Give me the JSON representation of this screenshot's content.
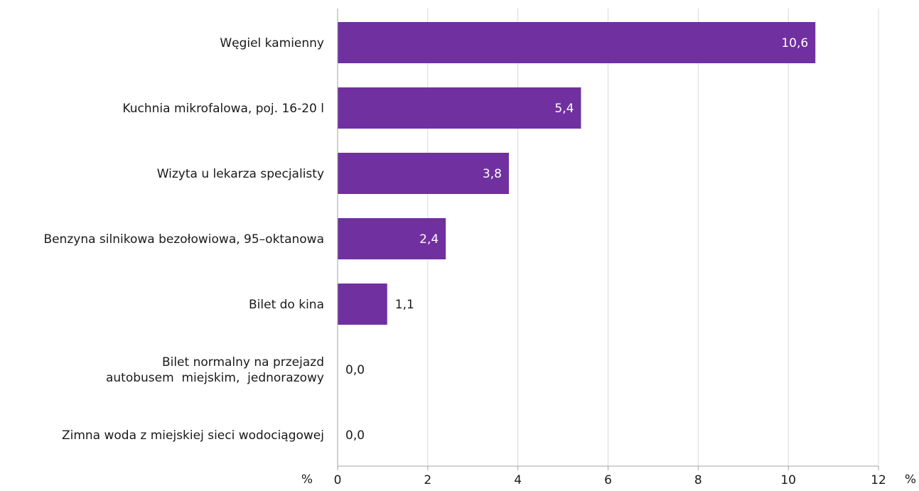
{
  "chart_data": {
    "type": "bar",
    "orientation": "horizontal",
    "categories": [
      [
        "Węgiel kamienny"
      ],
      [
        "Kuchnia mikrofalowa, poj. 16-20 l"
      ],
      [
        "Wizyta u lekarza specjalisty"
      ],
      [
        "Benzyna silnikowa bezołowiowa, 95–oktanowa"
      ],
      [
        "Bilet do kina"
      ],
      [
        "Bilet normalny na przejazd",
        "autobusem  miejskim,  jednorazowy"
      ],
      [
        "Zimna woda z miejskiej sieci wodociągowej"
      ]
    ],
    "values": [
      10.6,
      5.4,
      3.8,
      2.4,
      1.1,
      0.0,
      0.0
    ],
    "value_labels": [
      "10,6",
      "5,4",
      "3,8",
      "2,4",
      "1,1",
      "0,0",
      "0,0"
    ],
    "xlim": [
      0,
      12
    ],
    "x_ticks": [
      0,
      2,
      4,
      6,
      8,
      10,
      12
    ],
    "x_tick_labels": [
      "0",
      "2",
      "4",
      "6",
      "8",
      "10",
      "12"
    ],
    "unit_left": "%",
    "unit_right": "%",
    "grid": "vertical",
    "colors": {
      "bar": "#7030a0",
      "grid": "#d9d9d9",
      "axis": "#a6a6a6",
      "label_inside": "#ffffff",
      "label_outside": "#1a1a1a"
    }
  }
}
